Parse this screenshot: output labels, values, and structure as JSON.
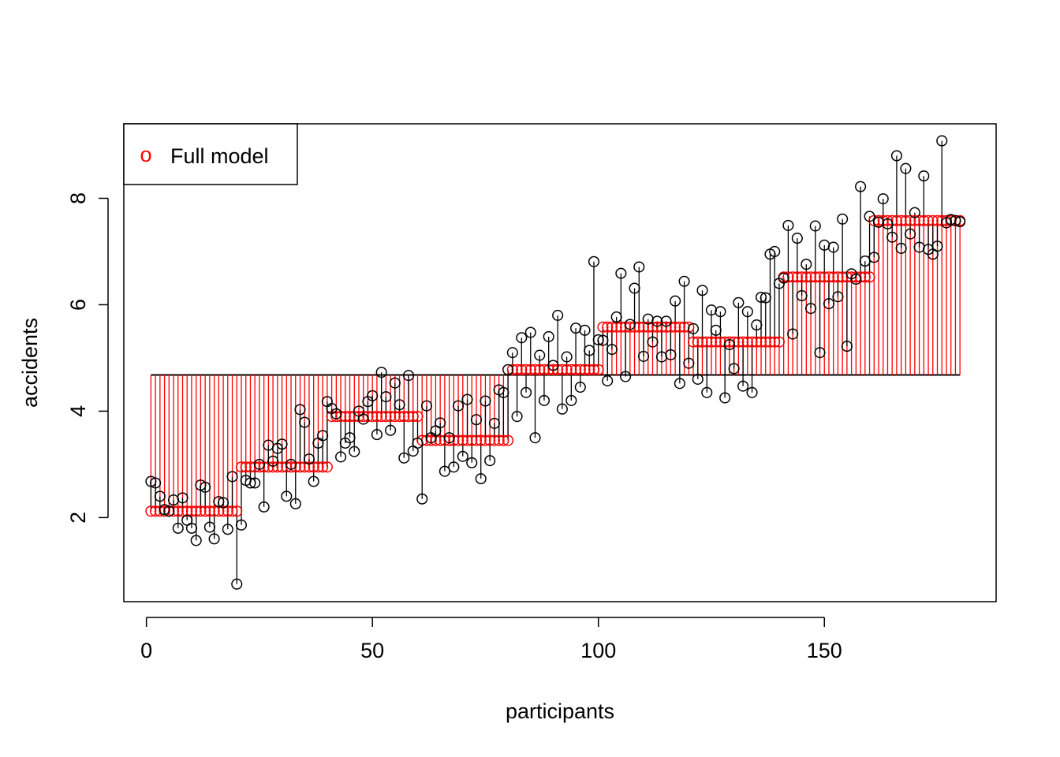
{
  "chart_data": {
    "type": "scatter",
    "xlabel": "participants",
    "ylabel": "accidents",
    "xlim": [
      -5,
      188
    ],
    "ylim": [
      0.42,
      9.4
    ],
    "xticks": [
      0,
      50,
      100,
      150
    ],
    "yticks": [
      2,
      4,
      6,
      8
    ],
    "grand_mean": 4.68,
    "legend": {
      "position": "top-left",
      "symbol": "o",
      "label": "Full model",
      "color": "#ff0000"
    },
    "colors": {
      "observed": "#000000",
      "fitted": "#ff0000",
      "mean_line": "#000000"
    },
    "groups": [
      {
        "start": 1,
        "end": 20,
        "fitted": 2.12
      },
      {
        "start": 21,
        "end": 40,
        "fitted": 2.95
      },
      {
        "start": 41,
        "end": 60,
        "fitted": 3.9
      },
      {
        "start": 61,
        "end": 80,
        "fitted": 3.45
      },
      {
        "start": 81,
        "end": 100,
        "fitted": 4.78
      },
      {
        "start": 101,
        "end": 120,
        "fitted": 5.58
      },
      {
        "start": 121,
        "end": 140,
        "fitted": 5.3
      },
      {
        "start": 141,
        "end": 160,
        "fitted": 6.52
      },
      {
        "start": 161,
        "end": 180,
        "fitted": 7.58
      }
    ],
    "observed": [
      2.68,
      2.65,
      2.4,
      2.15,
      2.12,
      2.33,
      1.8,
      2.37,
      1.95,
      1.8,
      1.57,
      2.61,
      2.57,
      1.82,
      1.6,
      2.3,
      2.28,
      1.78,
      2.77,
      0.75,
      1.86,
      2.7,
      2.65,
      2.65,
      3.0,
      2.2,
      3.36,
      3.06,
      3.3,
      3.38,
      2.4,
      3.0,
      2.26,
      4.03,
      3.79,
      3.1,
      2.68,
      3.4,
      3.54,
      4.18,
      4.05,
      3.95,
      3.14,
      3.4,
      3.5,
      3.24,
      4.0,
      3.85,
      4.18,
      4.29,
      3.56,
      4.73,
      4.27,
      3.64,
      4.53,
      4.12,
      3.12,
      4.67,
      3.25,
      3.4,
      2.35,
      4.1,
      3.5,
      3.63,
      3.78,
      2.87,
      3.5,
      2.95,
      4.1,
      3.15,
      4.22,
      3.03,
      3.84,
      2.73,
      4.19,
      3.07,
      3.77,
      4.4,
      4.35,
      4.78,
      5.1,
      3.9,
      5.38,
      4.35,
      5.48,
      3.5,
      5.05,
      4.2,
      5.4,
      4.86,
      5.8,
      4.04,
      5.02,
      4.2,
      5.56,
      4.45,
      5.52,
      5.14,
      6.81,
      5.34,
      5.33,
      4.57,
      5.16,
      5.77,
      6.59,
      4.65,
      5.63,
      6.31,
      6.71,
      5.03,
      5.73,
      5.3,
      5.69,
      5.02,
      5.69,
      5.06,
      6.07,
      4.52,
      6.44,
      4.9,
      5.55,
      4.6,
      6.27,
      4.35,
      5.9,
      5.52,
      5.87,
      4.25,
      5.25,
      4.8,
      6.04,
      4.47,
      5.87,
      4.35,
      5.62,
      6.14,
      6.13,
      6.95,
      7.0,
      6.4,
      6.5,
      7.49,
      5.45,
      7.25,
      6.17,
      6.76,
      5.93,
      7.48,
      5.1,
      7.12,
      6.02,
      7.08,
      6.15,
      7.61,
      5.22,
      6.58,
      6.48,
      8.22,
      6.82,
      7.66,
      6.89,
      7.55,
      7.99,
      7.52,
      7.27,
      8.8,
      7.06,
      8.56,
      7.33,
      7.73,
      7.08,
      8.42,
      7.04,
      6.95,
      7.1,
      9.08,
      7.54,
      7.6,
      7.58,
      7.56
    ]
  }
}
